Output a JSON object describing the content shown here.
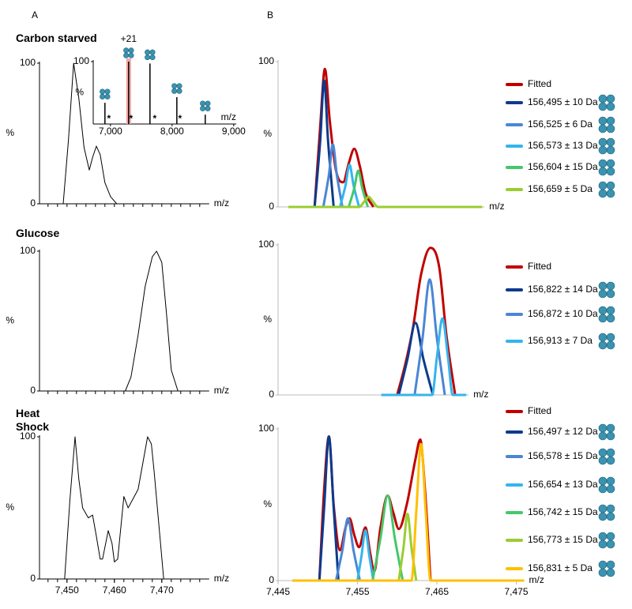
{
  "panel_labels": [
    "A",
    "B"
  ],
  "chart_data": [
    {
      "type": "line",
      "title": "Carbon starved",
      "xlabel": "m/z",
      "ylabel": "%",
      "xlim": [
        7444.2,
        7480
      ],
      "ylim": [
        0,
        100
      ],
      "yticks": [
        0,
        100
      ],
      "xminorticks": [
        7446,
        7448,
        7450,
        7452,
        7454,
        7456,
        7458,
        7460,
        7462,
        7464,
        7466,
        7468,
        7470,
        7472,
        7474,
        7476,
        7478
      ],
      "series": [
        {
          "color": "#000000",
          "x": [
            7449.2,
            7450.3,
            7451.4,
            7452.5,
            7453.6,
            7454.7,
            7455.4,
            7456.2,
            7457.0,
            7458.0,
            7459.2,
            7460.5
          ],
          "values": [
            0,
            45,
            100,
            75,
            40,
            24,
            33,
            41,
            35,
            15,
            5,
            0
          ]
        }
      ]
    },
    {
      "type": "line",
      "title": "Glucose",
      "xlabel": "m/z",
      "ylabel": "%",
      "xlim": [
        7444.2,
        7480
      ],
      "ylim": [
        0,
        100
      ],
      "yticks": [
        0,
        100
      ],
      "xminorticks": [
        7446,
        7448,
        7450,
        7452,
        7454,
        7456,
        7458,
        7460,
        7462,
        7464,
        7466,
        7468,
        7470,
        7472,
        7474,
        7476,
        7478
      ],
      "series": [
        {
          "color": "#000000",
          "x": [
            7462.3,
            7463.5,
            7465.0,
            7466.5,
            7468.0,
            7468.9,
            7470.0,
            7471.0,
            7472.0,
            7473.4
          ],
          "values": [
            0,
            10,
            40,
            75,
            96,
            100,
            92,
            55,
            15,
            0
          ]
        }
      ]
    },
    {
      "type": "line",
      "title": "Heat Shock",
      "xlabel": "m/z",
      "ylabel": "%",
      "xlim": [
        7444.2,
        7480
      ],
      "ylim": [
        0,
        100
      ],
      "yticks": [
        0,
        100
      ],
      "xticks": [
        {
          "value": 7450,
          "label": "7,450"
        },
        {
          "value": 7460,
          "label": "7,460"
        },
        {
          "value": 7470,
          "label": "7,470"
        }
      ],
      "xminorticks": [
        7446,
        7448,
        7450,
        7452,
        7454,
        7456,
        7458,
        7460,
        7462,
        7464,
        7466,
        7468,
        7470,
        7472,
        7474,
        7476,
        7478
      ],
      "series": [
        {
          "color": "#000000",
          "x": [
            7449.5,
            7450.6,
            7451.7,
            7452.5,
            7453.3,
            7454.5,
            7455.4,
            7456.2,
            7457.0,
            7457.5,
            7458.7,
            7459.5,
            7460.0,
            7460.7,
            7462.0,
            7462.9,
            7465.0,
            7467.0,
            7467.8,
            7468.4,
            7470.4
          ],
          "values": [
            0,
            55,
            100,
            70,
            50,
            43,
            45,
            30,
            14,
            14,
            34,
            25,
            12,
            14,
            58,
            50,
            63,
            100,
            95,
            75,
            0
          ]
        }
      ]
    },
    {
      "type": "stem",
      "xlabel": "m/z",
      "ylabel": "%",
      "xlim": [
        6720,
        9040
      ],
      "ylim": [
        0,
        100
      ],
      "yticks": [
        100
      ],
      "xticks": [
        {
          "value": 7000,
          "label": "7,000"
        },
        {
          "value": 8000,
          "label": "8,000"
        },
        {
          "value": 9000,
          "label": "9,000"
        }
      ],
      "color": "#000000",
      "x": [
        6910,
        7295,
        7641,
        8077,
        8538
      ],
      "values": [
        34,
        100,
        97,
        43,
        15
      ],
      "highlight": {
        "index": 1,
        "color": "#f4a6a6"
      },
      "annotations": [
        {
          "text": "+21",
          "x": 7295
        },
        {
          "text": "*",
          "x": 6974
        },
        {
          "text": "*",
          "x": 7333
        },
        {
          "text": "*",
          "x": 7718
        },
        {
          "text": "*",
          "x": 8128
        }
      ]
    },
    {
      "type": "line",
      "smooth": true,
      "xlabel": "m/z",
      "ylabel": "%",
      "xlim": [
        7445,
        7471
      ],
      "ylim": [
        0,
        100
      ],
      "yticks": [
        0,
        100
      ],
      "series": [
        {
          "name": "Fitted",
          "color": "#c00000",
          "x": [
            7449.6,
            7450.3,
            7450.9,
            7451.5,
            7452.3,
            7453.2,
            7453.9,
            7454.6,
            7455.3,
            7456.0,
            7457.0
          ],
          "values": [
            0,
            55,
            95,
            60,
            25,
            17,
            30,
            40,
            28,
            10,
            0
          ]
        },
        {
          "name": "156,495 ± 10 Da",
          "color": "#0d3a8c",
          "x": [
            7449.6,
            7450.3,
            7450.8,
            7451.3,
            7452.0
          ],
          "values": [
            0,
            45,
            87,
            45,
            0
          ]
        },
        {
          "name": "156,525 ± 6 Da",
          "color": "#4a86d4",
          "x": [
            7450.7,
            7451.4,
            7451.9,
            7452.4,
            7453.1
          ],
          "values": [
            0,
            22,
            43,
            22,
            0
          ]
        },
        {
          "name": "156,573 ± 13 Da",
          "color": "#33b5ee",
          "x": [
            7452.8,
            7453.5,
            7454.0,
            7454.5,
            7455.2
          ],
          "values": [
            0,
            15,
            29,
            15,
            0
          ]
        },
        {
          "name": "156,604 ± 15 Da",
          "color": "#45c76a",
          "x": [
            7453.9,
            7454.6,
            7455.1,
            7455.6,
            7456.3
          ],
          "values": [
            0,
            13,
            25,
            13,
            0
          ]
        },
        {
          "name": "156,659 ± 5 Da",
          "color": "#9acd32",
          "x": [
            7446.3,
            7455.2,
            7455.9,
            7456.4,
            7456.9,
            7457.6,
            7470.7
          ],
          "values": [
            0,
            0,
            4,
            7,
            4,
            0,
            0
          ]
        }
      ]
    },
    {
      "type": "line",
      "smooth": true,
      "xlabel": "m/z",
      "ylabel": "%",
      "xlim": [
        7445,
        7469
      ],
      "ylim": [
        0,
        100
      ],
      "yticks": [
        0,
        100
      ],
      "series": [
        {
          "name": "Fitted",
          "color": "#c00000",
          "x": [
            7460.0,
            7461.0,
            7462.0,
            7463.0,
            7464.2,
            7465.3,
            7466.2,
            7467.3
          ],
          "values": [
            0,
            20,
            45,
            80,
            98,
            85,
            40,
            0
          ]
        },
        {
          "name": "156,822 ± 14 Da",
          "color": "#0d3a8c",
          "x": [
            7460.2,
            7461.3,
            7462.3,
            7463.3,
            7464.5
          ],
          "values": [
            0,
            24,
            48,
            24,
            0
          ]
        },
        {
          "name": "156,872 ± 10 Da",
          "color": "#4a86d4",
          "x": [
            7462.2,
            7463.2,
            7464.1,
            7465.0,
            7466.0
          ],
          "values": [
            0,
            38,
            77,
            38,
            0
          ]
        },
        {
          "name": "156,913 ± 7 Da",
          "color": "#33b5ee",
          "x": [
            7458.0,
            7464.4,
            7465.0,
            7465.7,
            7466.4,
            7467.0,
            7468.7
          ],
          "values": [
            0,
            0,
            25,
            51,
            25,
            0,
            0
          ]
        }
      ]
    },
    {
      "type": "line",
      "smooth": true,
      "xlabel": "m/z",
      "ylabel": "%",
      "xlim": [
        7445,
        7476
      ],
      "ylim": [
        0,
        100
      ],
      "yticks": [
        0,
        100
      ],
      "xticks": [
        {
          "value": 7445,
          "label": "7,445"
        },
        {
          "value": 7455,
          "label": "7,455"
        },
        {
          "value": 7465,
          "label": "7,465"
        },
        {
          "value": 7475,
          "label": "7,475"
        }
      ],
      "series": [
        {
          "name": "Fitted",
          "color": "#c00000",
          "x": [
            7450.2,
            7450.8,
            7451.4,
            7452.0,
            7452.8,
            7453.5,
            7454.0,
            7454.6,
            7455.2,
            7456.0,
            7456.6,
            7457.1,
            7457.9,
            7458.8,
            7459.5,
            7460.2,
            7461.2,
            7462.3,
            7462.9,
            7463.5,
            7464.2
          ],
          "values": [
            0,
            60,
            95,
            50,
            20,
            35,
            41,
            30,
            22,
            35,
            18,
            6,
            35,
            56,
            45,
            34,
            50,
            80,
            93,
            60,
            0
          ]
        },
        {
          "name": "156,497 ± 12 Da",
          "color": "#0d3a8c",
          "x": [
            7450.2,
            7450.8,
            7451.4,
            7452.0,
            7452.6
          ],
          "values": [
            0,
            48,
            95,
            48,
            0
          ]
        },
        {
          "name": "156,578 ± 15 Da",
          "color": "#4a86d4",
          "x": [
            7452.3,
            7453.1,
            7453.8,
            7454.5,
            7455.3
          ],
          "values": [
            0,
            20,
            41,
            20,
            0
          ]
        },
        {
          "name": "156,654 ± 13 Da",
          "color": "#33b5ee",
          "x": [
            7455.0,
            7455.5,
            7456.0,
            7456.5,
            7457.0
          ],
          "values": [
            0,
            16,
            33,
            16,
            0
          ]
        },
        {
          "name": "156,742 ± 15 Da",
          "color": "#45c76a",
          "x": [
            7456.9,
            7457.9,
            7458.8,
            7459.7,
            7460.7
          ],
          "values": [
            0,
            28,
            56,
            28,
            0
          ]
        },
        {
          "name": "156,773 ± 15 Da",
          "color": "#9acd32",
          "x": [
            7460.2,
            7460.8,
            7461.3,
            7461.8,
            7462.4
          ],
          "values": [
            0,
            22,
            44,
            22,
            0
          ]
        },
        {
          "name": "156,831 ± 5 Da",
          "color": "#ffc000",
          "x": [
            7446.8,
            7461.8,
            7462.4,
            7463.0,
            7463.6,
            7464.2,
            7476.0
          ],
          "values": [
            0,
            0,
            45,
            90,
            45,
            0,
            0
          ]
        }
      ]
    }
  ]
}
